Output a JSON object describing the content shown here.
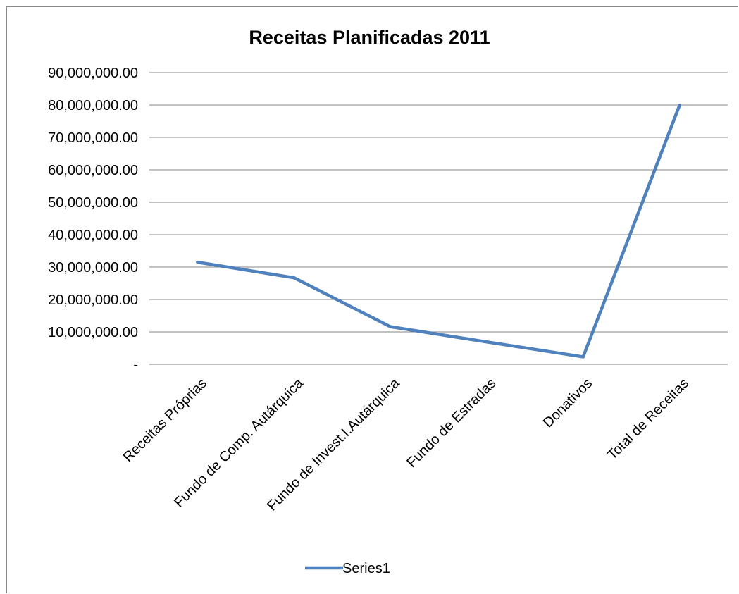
{
  "chart_data": {
    "type": "line",
    "title": "Receitas Planificadas 2011",
    "xlabel": "",
    "ylabel": "",
    "categories": [
      "Receitas Próprias",
      "Fundo de Comp. Autárquica",
      "Fundo de Invest.I.Autárquica",
      "Fundo de Estradas",
      "Donativos",
      "Total de Receitas"
    ],
    "series": [
      {
        "name": "Series1",
        "color": "#4f81bd",
        "values": [
          31500000,
          26700000,
          11600000,
          6900000,
          2300000,
          79900000
        ]
      }
    ],
    "ylim": [
      0,
      90000000
    ],
    "yticks": [
      0,
      10000000,
      20000000,
      30000000,
      40000000,
      50000000,
      60000000,
      70000000,
      80000000,
      90000000
    ],
    "ytick_labels": [
      "-",
      "10,000,000.00",
      "20,000,000.00",
      "30,000,000.00",
      "40,000,000.00",
      "50,000,000.00",
      "60,000,000.00",
      "70,000,000.00",
      "80,000,000.00",
      "90,000,000.00"
    ],
    "grid": true,
    "legend": "bottom"
  }
}
